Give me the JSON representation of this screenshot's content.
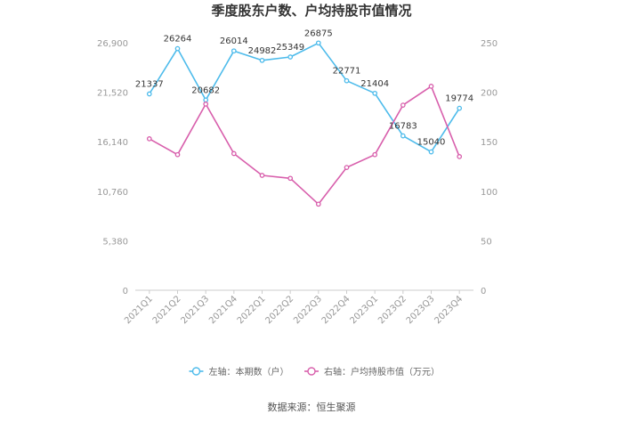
{
  "chart_data": {
    "type": "line",
    "title": "季度股东户数、户均持股市值情况",
    "categories": [
      "2021Q1",
      "2021Q2",
      "2021Q3",
      "2021Q4",
      "2022Q1",
      "2022Q2",
      "2022Q3",
      "2022Q4",
      "2023Q1",
      "2023Q2",
      "2023Q3",
      "2023Q4"
    ],
    "left_axis": {
      "ylim": [
        0,
        26900
      ],
      "ticks": [
        0,
        5380,
        10760,
        16140,
        21520,
        26900
      ],
      "tick_labels": [
        "0",
        "5,380",
        "10,760",
        "16,140",
        "21,520",
        "26,900"
      ]
    },
    "right_axis": {
      "ylim": [
        0,
        250
      ],
      "ticks": [
        0,
        50,
        100,
        150,
        200,
        250
      ],
      "tick_labels": [
        "0",
        "50",
        "100",
        "150",
        "200",
        "250"
      ]
    },
    "series": [
      {
        "name": "左轴：本期数（户）",
        "axis": "left",
        "color": "#4dbbeb",
        "values": [
          21337,
          26264,
          20682,
          26014,
          24982,
          25349,
          26875,
          22771,
          21404,
          16783,
          15040,
          19774
        ],
        "data_labels": [
          "21337",
          "26264",
          "20682",
          "26014",
          "24982",
          "25349",
          "26875",
          "22771",
          "21404",
          "16783",
          "15040",
          "19774"
        ]
      },
      {
        "name": "右轴：户均持股市值（万元）",
        "axis": "right",
        "color": "#d85fac",
        "values": [
          153,
          137,
          188,
          138,
          116,
          113,
          87,
          124,
          137,
          187,
          206,
          135
        ]
      }
    ],
    "legend_position": "bottom",
    "grid": false,
    "source": "数据来源：恒生聚源"
  }
}
